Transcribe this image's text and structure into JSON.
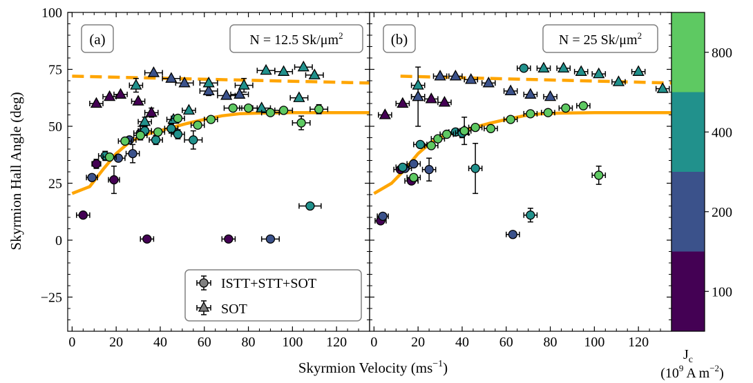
{
  "chart_data": {
    "type": "scatter",
    "ylabel": "Skyrmion Hall Angle (deg)",
    "xlabel_main": "Skyrmion Velocity (ms",
    "xlabel_sup": "−1",
    "xlabel_close": ")",
    "xlim": [
      -2,
      135
    ],
    "ylim": [
      -40,
      100
    ],
    "x_ticks": [
      0,
      20,
      40,
      60,
      80,
      100,
      120
    ],
    "y_ticks": [
      -25,
      0,
      25,
      50,
      75,
      100
    ],
    "y_tick_labels": [
      "−25",
      "0",
      "25",
      "50",
      "75",
      "100"
    ],
    "colors": {
      "j100": "#440154",
      "j200": "#3b528b",
      "j400": "#21918c",
      "j800": "#5ec962",
      "fit": "#ffa500"
    },
    "legend": {
      "entries": [
        {
          "label": "ISTT+STT+SOT",
          "marker": "circle"
        },
        {
          "label": "SOT",
          "marker": "triangle"
        }
      ],
      "placement": "lower-right of panel (a)"
    },
    "colorbar": {
      "title": "J",
      "title_sub": "c",
      "unit_open": "(10",
      "unit_sup": "9",
      "unit_mid": " A m",
      "unit_sup2": "−2",
      "unit_close": ")",
      "levels": [
        {
          "label": "100",
          "color": "#440154"
        },
        {
          "label": "200",
          "color": "#3b528b"
        },
        {
          "label": "400",
          "color": "#21918c"
        },
        {
          "label": "800",
          "color": "#5ec962"
        }
      ]
    },
    "panels": [
      {
        "label": "(a)",
        "density_text": "N = 12.5 Sk/μm",
        "density_sup": "2",
        "fit_solid": [
          [
            0,
            20.5
          ],
          [
            8,
            23.5
          ],
          [
            14,
            31
          ],
          [
            20,
            38
          ],
          [
            26,
            43
          ],
          [
            32,
            46
          ],
          [
            38,
            47.6
          ],
          [
            45,
            49.4
          ],
          [
            52,
            51.2
          ],
          [
            60,
            53
          ],
          [
            68,
            54.6
          ],
          [
            76,
            55.5
          ],
          [
            85,
            55.8
          ],
          [
            100,
            56
          ],
          [
            115,
            56
          ],
          [
            135,
            56
          ]
        ],
        "fit_dashed": [
          [
            0,
            72
          ],
          [
            135,
            69
          ]
        ],
        "circles": [
          {
            "x": 5,
            "y": 11,
            "xe": 3,
            "ye": 0,
            "j": 100
          },
          {
            "x": 11,
            "y": 33.5,
            "xe": 2,
            "ye": 2,
            "j": 100
          },
          {
            "x": 19,
            "y": 26.5,
            "xe": 2.5,
            "ye": 6,
            "j": 100
          },
          {
            "x": 34,
            "y": 0.5,
            "xe": 3,
            "ye": 0,
            "j": 100
          },
          {
            "x": 71,
            "y": 0.5,
            "xe": 3,
            "ye": 0,
            "j": 100
          },
          {
            "x": 9,
            "y": 27.5,
            "xe": 2.5,
            "ye": 0,
            "j": 200
          },
          {
            "x": 21,
            "y": 36,
            "xe": 3,
            "ye": 0,
            "j": 200
          },
          {
            "x": 26,
            "y": 44,
            "xe": 3,
            "ye": 0,
            "j": 200
          },
          {
            "x": 27.5,
            "y": 38,
            "xe": 3,
            "ye": 4,
            "j": 200
          },
          {
            "x": 31,
            "y": 47,
            "xe": 3,
            "ye": 3,
            "j": 200
          },
          {
            "x": 90,
            "y": 0.5,
            "xe": 4,
            "ye": 0,
            "j": 200
          },
          {
            "x": 15,
            "y": 37,
            "xe": 3,
            "ye": 2,
            "j": 400
          },
          {
            "x": 33,
            "y": 48,
            "xe": 3,
            "ye": 2,
            "j": 400
          },
          {
            "x": 38,
            "y": 44,
            "xe": 3,
            "ye": 2,
            "j": 400
          },
          {
            "x": 45,
            "y": 49,
            "xe": 3,
            "ye": 2,
            "j": 400
          },
          {
            "x": 48,
            "y": 46.5,
            "xe": 3,
            "ye": 2,
            "j": 400
          },
          {
            "x": 55,
            "y": 44,
            "xe": 4,
            "ye": 4,
            "j": 400
          },
          {
            "x": 108,
            "y": 15,
            "xe": 5,
            "ye": 0,
            "j": 400
          },
          {
            "x": 17,
            "y": 36.5,
            "xe": 3,
            "ye": 0,
            "j": 800
          },
          {
            "x": 24,
            "y": 43.5,
            "xe": 3,
            "ye": 0,
            "j": 800
          },
          {
            "x": 31,
            "y": 46,
            "xe": 3,
            "ye": 0,
            "j": 800
          },
          {
            "x": 39,
            "y": 47.5,
            "xe": 3,
            "ye": 0,
            "j": 800
          },
          {
            "x": 48,
            "y": 53.5,
            "xe": 3,
            "ye": 0,
            "j": 800
          },
          {
            "x": 57,
            "y": 50.5,
            "xe": 3,
            "ye": 0,
            "j": 800
          },
          {
            "x": 63,
            "y": 53,
            "xe": 3,
            "ye": 0,
            "j": 800
          },
          {
            "x": 73,
            "y": 58,
            "xe": 4,
            "ye": 0,
            "j": 800
          },
          {
            "x": 80,
            "y": 58,
            "xe": 4,
            "ye": 0,
            "j": 800
          },
          {
            "x": 90,
            "y": 56,
            "xe": 4,
            "ye": 0,
            "j": 800
          },
          {
            "x": 96,
            "y": 57,
            "xe": 4,
            "ye": 0,
            "j": 800
          },
          {
            "x": 104,
            "y": 51.5,
            "xe": 4,
            "ye": 3,
            "j": 800
          },
          {
            "x": 112,
            "y": 57.5,
            "xe": 4,
            "ye": 2,
            "j": 800
          }
        ],
        "triangles": [
          {
            "x": 11,
            "y": 60,
            "xe": 3,
            "ye": 0,
            "j": 100
          },
          {
            "x": 17,
            "y": 63,
            "xe": 3,
            "ye": 0,
            "j": 100
          },
          {
            "x": 22,
            "y": 64,
            "xe": 3,
            "ye": 0,
            "j": 100
          },
          {
            "x": 30,
            "y": 61,
            "xe": 3,
            "ye": 0,
            "j": 100
          },
          {
            "x": 36,
            "y": 56,
            "xe": 3,
            "ye": 2,
            "j": 100
          },
          {
            "x": 37,
            "y": 73.5,
            "xe": 4,
            "ye": 0,
            "j": 200
          },
          {
            "x": 45,
            "y": 71,
            "xe": 4,
            "ye": 0,
            "j": 200
          },
          {
            "x": 51,
            "y": 69,
            "xe": 4,
            "ye": 0,
            "j": 200
          },
          {
            "x": 62,
            "y": 65.5,
            "xe": 4,
            "ye": 2,
            "j": 200
          },
          {
            "x": 70,
            "y": 63.5,
            "xe": 4,
            "ye": 0,
            "j": 200
          },
          {
            "x": 76,
            "y": 64,
            "xe": 4,
            "ye": 0,
            "j": 200
          },
          {
            "x": 33,
            "y": 52,
            "xe": 3,
            "ye": 2,
            "j": 400
          },
          {
            "x": 46,
            "y": 53,
            "xe": 3,
            "ye": 0,
            "j": 400
          },
          {
            "x": 53,
            "y": 57,
            "xe": 3,
            "ye": 0,
            "j": 400
          },
          {
            "x": 29,
            "y": 68,
            "xe": 3,
            "ye": 3,
            "j": 400
          },
          {
            "x": 62,
            "y": 69,
            "xe": 4,
            "ye": 0,
            "j": 400
          },
          {
            "x": 78,
            "y": 68,
            "xe": 4,
            "ye": 3,
            "j": 400
          },
          {
            "x": 88,
            "y": 74.5,
            "xe": 4,
            "ye": 0,
            "j": 400
          },
          {
            "x": 96,
            "y": 74,
            "xe": 4,
            "ye": 0,
            "j": 400
          },
          {
            "x": 105,
            "y": 76,
            "xe": 4,
            "ye": 0,
            "j": 400
          },
          {
            "x": 110,
            "y": 72.5,
            "xe": 4,
            "ye": 0,
            "j": 400
          },
          {
            "x": 86,
            "y": 58,
            "xe": 4,
            "ye": 0,
            "j": 400
          },
          {
            "x": 103,
            "y": 62.5,
            "xe": 4,
            "ye": 0,
            "j": 400
          }
        ]
      },
      {
        "label": "(b)",
        "density_text": "N = 25 Sk/μm",
        "density_sup": "2",
        "fit_solid": [
          [
            0,
            20.5
          ],
          [
            8,
            25
          ],
          [
            14,
            31
          ],
          [
            20,
            38
          ],
          [
            26,
            43
          ],
          [
            32,
            46
          ],
          [
            38,
            47.6
          ],
          [
            45,
            49.4
          ],
          [
            52,
            51.2
          ],
          [
            60,
            53
          ],
          [
            68,
            54.6
          ],
          [
            76,
            55.5
          ],
          [
            85,
            55.8
          ],
          [
            100,
            56
          ],
          [
            115,
            56
          ],
          [
            135,
            56
          ]
        ],
        "fit_dashed": [
          [
            12,
            72
          ],
          [
            135,
            69
          ]
        ],
        "circles": [
          {
            "x": 3,
            "y": 8.5,
            "xe": 2.5,
            "ye": 0,
            "j": 100
          },
          {
            "x": 12,
            "y": 31,
            "xe": 3,
            "ye": 0,
            "j": 100
          },
          {
            "x": 17,
            "y": 26,
            "xe": 3,
            "ye": 0,
            "j": 100
          },
          {
            "x": 4,
            "y": 10.5,
            "xe": 2.5,
            "ye": 0,
            "j": 200
          },
          {
            "x": 14,
            "y": 31.5,
            "xe": 3,
            "ye": 0,
            "j": 200
          },
          {
            "x": 18,
            "y": 33.5,
            "xe": 3,
            "ye": 0,
            "j": 200
          },
          {
            "x": 25,
            "y": 31,
            "xe": 3,
            "ye": 5,
            "j": 200
          },
          {
            "x": 63,
            "y": 2.5,
            "xe": 3,
            "ye": 0,
            "j": 200
          },
          {
            "x": 13,
            "y": 32,
            "xe": 3,
            "ye": 0,
            "j": 400
          },
          {
            "x": 21,
            "y": 42,
            "xe": 3,
            "ye": 0,
            "j": 400
          },
          {
            "x": 37,
            "y": 47.5,
            "xe": 3,
            "ye": 0,
            "j": 400
          },
          {
            "x": 40,
            "y": 47,
            "xe": 3,
            "ye": 2,
            "j": 400
          },
          {
            "x": 46,
            "y": 31.5,
            "xe": 3,
            "ye": 11,
            "j": 400
          },
          {
            "x": 68,
            "y": 75.5,
            "xe": 3,
            "ye": 0,
            "j": 400
          },
          {
            "x": 71,
            "y": 11,
            "xe": 3,
            "ye": 3,
            "j": 400
          },
          {
            "x": 18,
            "y": 27.5,
            "xe": 3,
            "ye": 0,
            "j": 800
          },
          {
            "x": 26,
            "y": 41.5,
            "xe": 3,
            "ye": 0,
            "j": 800
          },
          {
            "x": 29,
            "y": 44.5,
            "xe": 3,
            "ye": 0,
            "j": 800
          },
          {
            "x": 33,
            "y": 46.5,
            "xe": 3,
            "ye": 0,
            "j": 800
          },
          {
            "x": 41,
            "y": 48,
            "xe": 3,
            "ye": 0,
            "j": 800
          },
          {
            "x": 46,
            "y": 49.5,
            "xe": 3,
            "ye": 0,
            "j": 800
          },
          {
            "x": 53,
            "y": 49,
            "xe": 3,
            "ye": 0,
            "j": 800
          },
          {
            "x": 62,
            "y": 53,
            "xe": 3,
            "ye": 0,
            "j": 800
          },
          {
            "x": 71,
            "y": 55.5,
            "xe": 3,
            "ye": 0,
            "j": 800
          },
          {
            "x": 79,
            "y": 56,
            "xe": 3,
            "ye": 0,
            "j": 800
          },
          {
            "x": 87,
            "y": 58,
            "xe": 3,
            "ye": 0,
            "j": 800
          },
          {
            "x": 95,
            "y": 59,
            "xe": 3,
            "ye": 0,
            "j": 800
          },
          {
            "x": 102,
            "y": 28.5,
            "xe": 3,
            "ye": 4,
            "j": 800
          }
        ],
        "triangles": [
          {
            "x": 5,
            "y": 55,
            "xe": 3,
            "ye": 0,
            "j": 100
          },
          {
            "x": 13,
            "y": 60,
            "xe": 3,
            "ye": 0,
            "j": 100
          },
          {
            "x": 20,
            "y": 63,
            "xe": 3,
            "ye": 0,
            "j": 100
          },
          {
            "x": 26,
            "y": 62,
            "xe": 3,
            "ye": 0,
            "j": 100
          },
          {
            "x": 32,
            "y": 60.5,
            "xe": 3,
            "ye": 0,
            "j": 100
          },
          {
            "x": 41,
            "y": 48,
            "xe": 3,
            "ye": 6,
            "j": 100
          },
          {
            "x": 20,
            "y": 63,
            "xe": 3,
            "ye": 13,
            "j": 200
          },
          {
            "x": 30,
            "y": 72,
            "xe": 3,
            "ye": 0,
            "j": 200
          },
          {
            "x": 37,
            "y": 72,
            "xe": 3,
            "ye": 0,
            "j": 200
          },
          {
            "x": 44,
            "y": 70.5,
            "xe": 3,
            "ye": 0,
            "j": 200
          },
          {
            "x": 52,
            "y": 69,
            "xe": 3,
            "ye": 0,
            "j": 200
          },
          {
            "x": 62,
            "y": 65.5,
            "xe": 3,
            "ye": 0,
            "j": 200
          },
          {
            "x": 71,
            "y": 64,
            "xe": 3,
            "ye": 0,
            "j": 200
          },
          {
            "x": 80,
            "y": 63,
            "xe": 3,
            "ye": 0,
            "j": 200
          },
          {
            "x": 20,
            "y": 68,
            "xe": 3,
            "ye": 0,
            "j": 400
          },
          {
            "x": 77,
            "y": 75.5,
            "xe": 3,
            "ye": 0,
            "j": 400
          },
          {
            "x": 86,
            "y": 75.5,
            "xe": 3,
            "ye": 0,
            "j": 400
          },
          {
            "x": 94,
            "y": 74,
            "xe": 3,
            "ye": 0,
            "j": 400
          },
          {
            "x": 102,
            "y": 73,
            "xe": 3,
            "ye": 0,
            "j": 400
          },
          {
            "x": 111,
            "y": 69.5,
            "xe": 3,
            "ye": 0,
            "j": 400
          },
          {
            "x": 120,
            "y": 74,
            "xe": 3,
            "ye": 0,
            "j": 400
          },
          {
            "x": 131,
            "y": 66.5,
            "xe": 3,
            "ye": 0,
            "j": 400
          }
        ]
      }
    ]
  }
}
